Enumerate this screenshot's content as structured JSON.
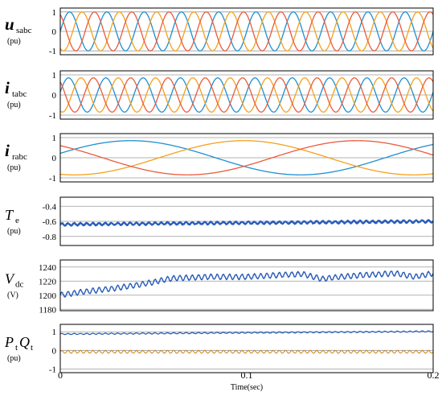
{
  "chart_data": {
    "type": "line",
    "xlabel": "Time(sec)",
    "xlim": [
      0,
      0.2
    ],
    "xticks": [
      "0",
      "0.1",
      "0.2"
    ],
    "colors": {
      "phase_a": "#1f8fd0",
      "phase_b": "#f4a11d",
      "phase_c": "#ec5a3c",
      "dark_blue": "#2a5db8",
      "olive": "#c8861f",
      "grid": "#9a9a9a"
    },
    "panels": [
      {
        "name": "usabc",
        "ylabel": {
          "main": "u",
          "sub": "sabc",
          "unit": "(pu)"
        },
        "ylim": [
          -1.2,
          1.2
        ],
        "yticks": [
          "1",
          "0",
          "-1"
        ],
        "yticks_values": [
          1,
          0,
          -1
        ],
        "series": [
          {
            "color_key": "phase_a",
            "kind": "sine",
            "amplitude": 1,
            "frequency_hz": 50,
            "phase_deg": 0
          },
          {
            "color_key": "phase_b",
            "kind": "sine",
            "amplitude": 1,
            "frequency_hz": 50,
            "phase_deg": -120
          },
          {
            "color_key": "phase_c",
            "kind": "sine",
            "amplitude": 1,
            "frequency_hz": 50,
            "phase_deg": 120
          }
        ]
      },
      {
        "name": "itabc",
        "ylabel": {
          "main": "i",
          "sub": "tabc",
          "unit": "(pu)"
        },
        "ylim": [
          -1.2,
          1.2
        ],
        "yticks": [
          "1",
          "0",
          "-1"
        ],
        "yticks_values": [
          1,
          0,
          -1
        ],
        "series": [
          {
            "color_key": "phase_a",
            "kind": "sine",
            "amplitude": 0.85,
            "frequency_hz": 50,
            "phase_deg": 10
          },
          {
            "color_key": "phase_b",
            "kind": "sine",
            "amplitude": 0.85,
            "frequency_hz": 50,
            "phase_deg": -110
          },
          {
            "color_key": "phase_c",
            "kind": "sine",
            "amplitude": 0.85,
            "frequency_hz": 50,
            "phase_deg": 130
          }
        ]
      },
      {
        "name": "irabc",
        "ylabel": {
          "main": "i",
          "sub": "rabc",
          "unit": "(pu)"
        },
        "ylim": [
          -1.2,
          1.2
        ],
        "yticks": [
          "1",
          "0",
          "-1"
        ],
        "yticks_values": [
          1,
          0,
          -1
        ],
        "series": [
          {
            "color_key": "phase_a",
            "kind": "sine",
            "amplitude": 0.85,
            "frequency_hz": 5.5,
            "phase_deg": 15
          },
          {
            "color_key": "phase_b",
            "kind": "sine",
            "amplitude": 0.85,
            "frequency_hz": 5.5,
            "phase_deg": -105
          },
          {
            "color_key": "phase_c",
            "kind": "sine",
            "amplitude": 0.85,
            "frequency_hz": 5.5,
            "phase_deg": 135
          }
        ]
      },
      {
        "name": "Te",
        "ylabel": {
          "main": "T",
          "sub": "e",
          "unit": "(pu)"
        },
        "ylim": [
          -0.92,
          -0.28
        ],
        "yticks": [
          "-0.4",
          "-0.6",
          "-0.8"
        ],
        "yticks_values": [
          -0.4,
          -0.6,
          -0.8
        ],
        "series": [
          {
            "color_key": "dark_blue",
            "kind": "ripple",
            "mean_start": -0.64,
            "mean_end": -0.6,
            "ripple": 0.015,
            "ripple_hz": 300,
            "noise": 0.006,
            "width": 2.2
          }
        ]
      },
      {
        "name": "Vdc",
        "ylabel": {
          "main": "V",
          "sub": "dc",
          "unit": "(V)"
        },
        "ylim": [
          1178,
          1250
        ],
        "yticks": [
          "1240",
          "1220",
          "1200",
          "1180"
        ],
        "yticks_values": [
          1240,
          1220,
          1200,
          1180
        ],
        "series": [
          {
            "color_key": "dark_blue",
            "kind": "profile",
            "ripple": 3.5,
            "ripple_hz": 300,
            "width": 1.4,
            "profile_t": [
              0,
              0.01,
              0.03,
              0.045,
              0.06,
              0.08,
              0.1,
              0.12,
              0.13,
              0.14,
              0.15,
              0.165,
              0.18,
              0.19,
              0.2
            ],
            "profile_v": [
              1200,
              1204,
              1210,
              1216,
              1224,
              1226,
              1226,
              1229,
              1230,
              1223,
              1226,
              1229,
              1231,
              1226,
              1231
            ]
          }
        ]
      },
      {
        "name": "PtQt",
        "ylabel": {
          "main": "P",
          "sub": "t",
          "main2": "Q",
          "sub2": "t",
          "unit": "(pu)"
        },
        "ylim": [
          -1.2,
          1.4
        ],
        "yticks": [
          "1",
          "0",
          "-1"
        ],
        "yticks_values": [
          1,
          0,
          -1
        ],
        "series": [
          {
            "color_key": "dark_blue",
            "kind": "ripple",
            "mean_start": 0.88,
            "mean_end": 1.02,
            "ripple": 0.03,
            "ripple_hz": 300,
            "noise": 0.01,
            "width": 1.2
          },
          {
            "color_key": "olive",
            "kind": "ripple",
            "mean_start": -0.08,
            "mean_end": -0.08,
            "ripple": 0.07,
            "ripple_hz": 300,
            "noise": 0.01,
            "width": 1
          }
        ]
      }
    ]
  }
}
